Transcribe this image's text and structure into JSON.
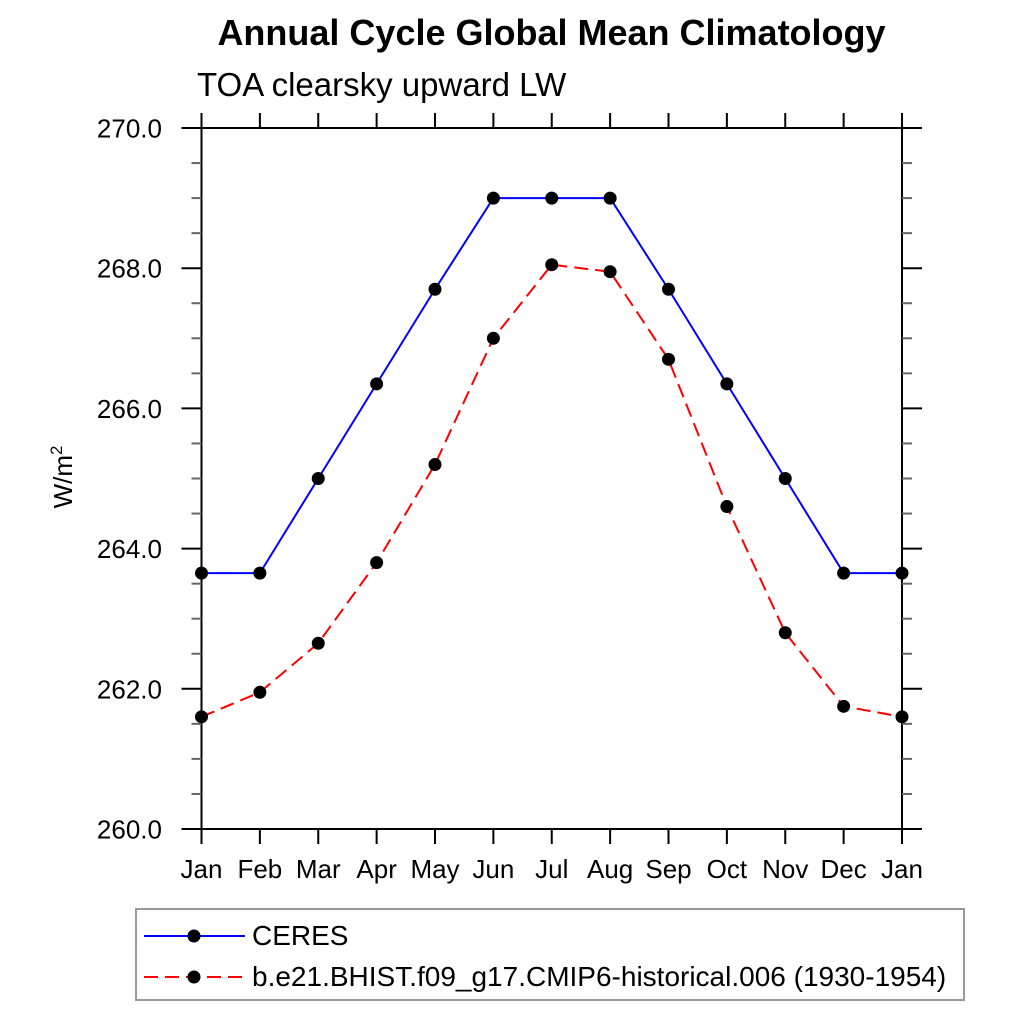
{
  "chart_data": {
    "type": "line",
    "title": "Annual Cycle Global Mean Climatology",
    "subtitle": "TOA clearsky upward LW",
    "ylabel_base": "W/m",
    "ylabel_sup": "2",
    "x_tick_labels": [
      "Jan",
      "Feb",
      "Mar",
      "Apr",
      "May",
      "Jun",
      "Jul",
      "Aug",
      "Sep",
      "Oct",
      "Nov",
      "Dec",
      "Jan"
    ],
    "ylim": [
      260.0,
      270.0
    ],
    "y_major_ticks": [
      260.0,
      262.0,
      264.0,
      266.0,
      268.0,
      270.0
    ],
    "y_minor_step": 0.5,
    "y_label_decimals": 1,
    "grid": false,
    "legend_position": "bottom-left",
    "axis_color": "#000000",
    "minor_tick_color": "#666666",
    "marker_color": "#000000",
    "series": [
      {
        "name": "CERES",
        "color": "#0000ff",
        "line_style": "solid",
        "marker": "circle",
        "values": [
          263.65,
          263.65,
          265.0,
          266.35,
          267.7,
          269.0,
          269.0,
          269.0,
          267.7,
          266.35,
          265.0,
          263.65,
          263.65
        ]
      },
      {
        "name": "b.e21.BHIST.f09_g17.CMIP6-historical.006 (1930-1954)",
        "color": "#ff0000",
        "line_style": "dashed",
        "marker": "circle",
        "values": [
          261.6,
          261.95,
          262.65,
          263.8,
          265.2,
          267.0,
          268.05,
          267.95,
          266.7,
          264.6,
          262.8,
          261.75,
          261.6
        ]
      }
    ]
  }
}
